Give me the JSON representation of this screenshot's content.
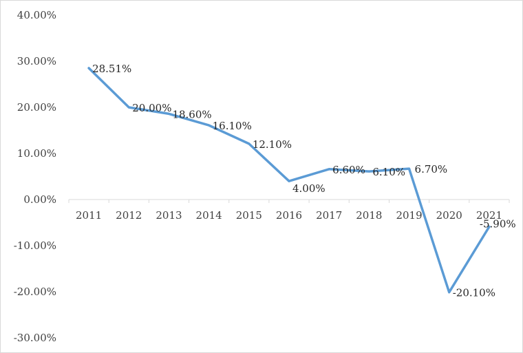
{
  "chart_data": {
    "type": "line",
    "title": "",
    "xlabel": "",
    "ylabel": "",
    "x": [
      "2011",
      "2012",
      "2013",
      "2014",
      "2015",
      "2016",
      "2017",
      "2018",
      "2019",
      "2020",
      "2021"
    ],
    "series": [
      {
        "values": [
          28.51,
          20.0,
          18.6,
          16.1,
          12.1,
          4.0,
          6.6,
          6.1,
          6.7,
          -20.1,
          -5.9
        ],
        "labels": [
          "28.51%",
          "20.00%",
          "18.60%",
          "16.10%",
          "12.10%",
          "4.00%",
          "6.60%",
          "6.10%",
          "6.70%",
          "-20.10%",
          "-5.90%"
        ],
        "color": "#5b9bd5"
      }
    ],
    "ylim": [
      -30,
      40
    ],
    "yticks": [
      40,
      30,
      20,
      10,
      0,
      -10,
      -20,
      -30
    ],
    "ytick_labels": [
      "40.00%",
      "30.00%",
      "20.00%",
      "10.00%",
      "0.00%",
      "-10.00%",
      "-20.00%",
      "-30.00%"
    ],
    "grid": false,
    "legend": "none",
    "axis_color": "#d9d9d9"
  }
}
